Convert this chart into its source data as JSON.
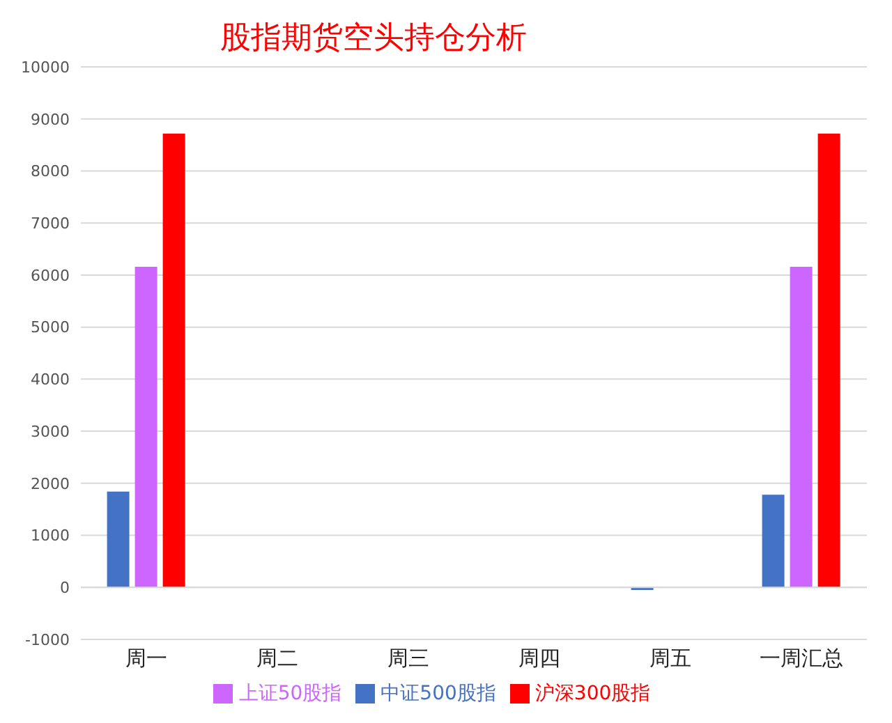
{
  "chart_data": {
    "type": "bar",
    "title": "股指期货空头持仓分析",
    "categories": [
      "周一",
      "周二",
      "周三",
      "周四",
      "周五",
      "一周汇总"
    ],
    "series": [
      {
        "name": "中证500股指",
        "color": "#4472c4",
        "values": [
          1840,
          0,
          0,
          0,
          -50,
          1780
        ]
      },
      {
        "name": "上证50股指",
        "color": "#cc66ff",
        "values": [
          6160,
          0,
          0,
          0,
          0,
          6160
        ]
      },
      {
        "name": "沪深300股指",
        "color": "#ff0000",
        "values": [
          8720,
          0,
          0,
          0,
          0,
          8720
        ]
      }
    ],
    "ylim": [
      -1000,
      10000
    ],
    "yticks": [
      -1000,
      0,
      1000,
      2000,
      3000,
      4000,
      5000,
      6000,
      7000,
      8000,
      9000,
      10000
    ],
    "grid": "y",
    "legend": "bottom"
  }
}
